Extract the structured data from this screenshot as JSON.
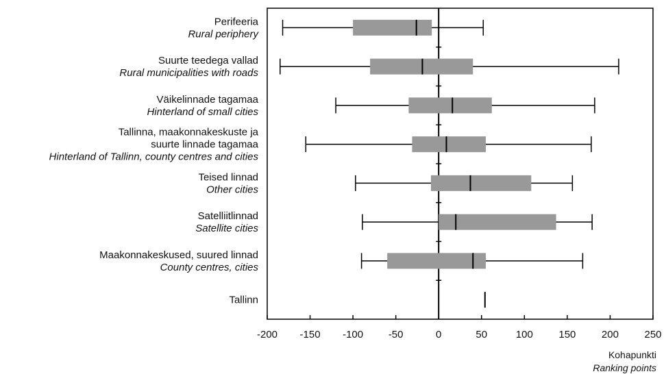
{
  "chart_data": {
    "type": "boxplot",
    "orientation": "horizontal",
    "title": "",
    "xlabel": "Kohapunkti",
    "xlabel_en": "Ranking points",
    "xlim": [
      -200,
      250
    ],
    "xticks": [
      -200,
      -150,
      -100,
      -50,
      0,
      50,
      100,
      150,
      200,
      250
    ],
    "colors": {
      "box": "#999999",
      "line": "#000000"
    },
    "categories": [
      {
        "label_et": [
          "Perifeeria"
        ],
        "label_en": [
          "Rural periphery"
        ],
        "min": -182,
        "q1": -100,
        "median": -26,
        "q3": -8,
        "max": 52
      },
      {
        "label_et": [
          "Suurte teedega vallad"
        ],
        "label_en": [
          "Rural municipalities with roads"
        ],
        "min": -185,
        "q1": -80,
        "median": -19,
        "q3": 40,
        "max": 210
      },
      {
        "label_et": [
          "Väikelinnade tagamaa"
        ],
        "label_en": [
          "Hinterland of small cities"
        ],
        "min": -120,
        "q1": -35,
        "median": 16,
        "q3": 62,
        "max": 182
      },
      {
        "label_et": [
          "Tallinna, maakonnakeskuste ja",
          "suurte linnade tagamaa"
        ],
        "label_en": [
          "Hinterland of Tallinn, county centres and cities"
        ],
        "min": -155,
        "q1": -31,
        "median": 9,
        "q3": 55,
        "max": 178
      },
      {
        "label_et": [
          "Teised linnad"
        ],
        "label_en": [
          "Other cities"
        ],
        "min": -97,
        "q1": -9,
        "median": 37,
        "q3": 108,
        "max": 156
      },
      {
        "label_et": [
          "Satelliitlinnad"
        ],
        "label_en": [
          "Satellite cities"
        ],
        "min": -89,
        "q1": 0,
        "median": 20,
        "q3": 137,
        "max": 179
      },
      {
        "label_et": [
          "Maakonnakeskused, suured linnad"
        ],
        "label_en": [
          "County centres, cities"
        ],
        "min": -90,
        "q1": -60,
        "median": 40,
        "q3": 55,
        "max": 168
      },
      {
        "label_et": [
          "Tallinn"
        ],
        "label_en": [],
        "min": 54,
        "q1": 54,
        "median": 54,
        "q3": 54,
        "max": 54
      }
    ]
  }
}
